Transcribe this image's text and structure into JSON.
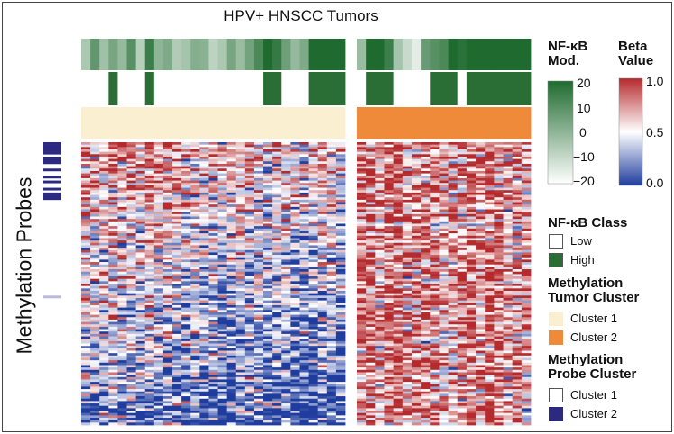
{
  "figure": {
    "title": "HPV+ HNSCC Tumors",
    "y_axis_label": "Methylation Probes"
  },
  "legend": {
    "nfkb_mod": {
      "title_line1": "NF-κB",
      "title_line2": "Mod.",
      "ticks": [
        "20",
        "10",
        "0",
        "−10",
        "−20"
      ],
      "colors": {
        "high": "#1f6b2f",
        "low": "#ffffff"
      }
    },
    "beta_value": {
      "title_line1": "Beta",
      "title_line2": "Value",
      "ticks": [
        "1.0",
        "0.5",
        "0.0"
      ],
      "colors": {
        "high": "#b52a2d",
        "mid": "#ffffff",
        "low": "#1f3d9e"
      }
    },
    "nfkb_class": {
      "title": "NF-κB Class",
      "items": [
        {
          "label": "Low",
          "color": "#ffffff"
        },
        {
          "label": "High",
          "color": "#2a6e35"
        }
      ]
    },
    "tumor_cluster": {
      "title_line1": "Methylation",
      "title_line2": "Tumor Cluster",
      "items": [
        {
          "label": "Cluster 1",
          "color": "#fbefd2"
        },
        {
          "label": "Cluster 2",
          "color": "#ee8a3a"
        }
      ]
    },
    "probe_cluster": {
      "title_line1": "Methylation",
      "title_line2": "Probe Cluster",
      "items": [
        {
          "label": "Cluster 1",
          "color": "#ffffff"
        },
        {
          "label": "Cluster 2",
          "color": "#2b2a80"
        }
      ]
    }
  },
  "chart_data": {
    "type": "heatmap",
    "title": "HPV+ HNSCC Tumors",
    "ylabel": "Methylation Probes",
    "value_range": [
      0.0,
      1.0
    ],
    "modulation_range": [
      -20,
      20
    ],
    "groups": [
      {
        "tumor_cluster": "Cluster 1",
        "nfkb_mod": [
          -5,
          8,
          -3,
          4,
          -1,
          10,
          -7,
          15,
          0,
          3,
          -6,
          -4,
          2,
          1,
          -8,
          -5,
          4,
          -2,
          5,
          12,
          20,
          16,
          6,
          -1,
          3,
          22,
          24,
          21,
          23
        ],
        "nfkb_class": [
          "Low",
          "Low",
          "Low",
          "High",
          "Low",
          "Low",
          "Low",
          "High",
          "Low",
          "Low",
          "Low",
          "Low",
          "Low",
          "Low",
          "Low",
          "Low",
          "Low",
          "Low",
          "Low",
          "Low",
          "High",
          "High",
          "Low",
          "Low",
          "Low",
          "High",
          "High",
          "High",
          "High"
        ]
      },
      {
        "tumor_cluster": "Cluster 2",
        "nfkb_mod": [
          -2,
          20,
          22,
          15,
          -4,
          -10,
          -15,
          7,
          10,
          12,
          20,
          18,
          22,
          25,
          23,
          24,
          22,
          25,
          24
        ],
        "nfkb_class": [
          "Low",
          "High",
          "High",
          "High",
          "Low",
          "Low",
          "Low",
          "Low",
          "High",
          "High",
          "High",
          "Low",
          "High",
          "High",
          "High",
          "High",
          "High",
          "High",
          "High"
        ]
      }
    ],
    "probe_cluster_2_fraction": 0.2,
    "beta_pattern": {
      "cluster_1_top": 0.75,
      "cluster_1_bottom": 0.2,
      "cluster_2_mean": 0.78
    }
  }
}
